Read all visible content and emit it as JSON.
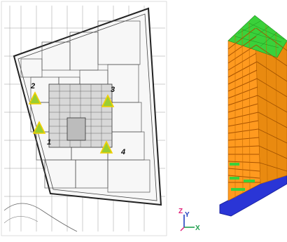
{
  "floor_plan": {
    "markers": [
      {
        "label": "1",
        "color": "#9acd32"
      },
      {
        "label": "2",
        "color": "#9acd32"
      },
      {
        "label": "3",
        "color": "#9acd32"
      },
      {
        "label": "4",
        "color": "#9acd32"
      }
    ],
    "marker_fill": "#9acd32",
    "marker_stroke": "#f2d000"
  },
  "axes_triad": {
    "z_label": "Z",
    "y_label": "Y",
    "x_label": "X",
    "colors": {
      "z": "#e0207a",
      "y": "#1f3fbf",
      "x": "#22a050"
    }
  },
  "building_model": {
    "colors": {
      "roof": "#3ad13a",
      "facade": "#ff9a1f",
      "floor_band": "#d46a00",
      "base": "#2a35d6"
    }
  }
}
